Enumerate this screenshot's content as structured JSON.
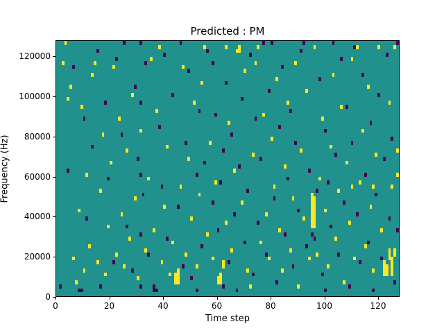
{
  "figure": {
    "title": "Predicted : PM",
    "xlabel": "Time step",
    "ylabel": "Frequency (Hz)"
  },
  "chart_data": {
    "type": "heatmap",
    "title": "Predicted : PM",
    "xlabel": "Time step",
    "ylabel": "Frequency (Hz)",
    "x_max": 128,
    "y_max": 128000,
    "bins_x": 128,
    "bins_y": 64,
    "bin_height_hz": 2000,
    "x_ticks": [
      0,
      20,
      40,
      60,
      80,
      100,
      120
    ],
    "y_ticks": [
      0,
      20000,
      40000,
      60000,
      80000,
      100000,
      120000
    ],
    "grid": false,
    "legend": "none",
    "colors": {
      "background": "#20918c",
      "high": "#fde725",
      "low": "#440154"
    },
    "cells_note": "each cell = [colorKey(y=yellow/high, p=purple/low), timeStep(0-127), freqBin(0-63, bin=2000Hz), optional heightInBins]",
    "cells": [
      [
        "y",
        2,
        58
      ],
      [
        "y",
        3,
        63
      ],
      [
        "y",
        4,
        49
      ],
      [
        "y",
        5,
        52
      ],
      [
        "y",
        6,
        9
      ],
      [
        "y",
        7,
        3
      ],
      [
        "y",
        8,
        21
      ],
      [
        "y",
        9,
        47
      ],
      [
        "y",
        10,
        6
      ],
      [
        "y",
        11,
        30
      ],
      [
        "y",
        12,
        12
      ],
      [
        "y",
        13,
        55
      ],
      [
        "y",
        14,
        58
      ],
      [
        "y",
        15,
        8
      ],
      [
        "y",
        16,
        26
      ],
      [
        "y",
        17,
        40
      ],
      [
        "y",
        18,
        5
      ],
      [
        "y",
        19,
        17
      ],
      [
        "y",
        20,
        33
      ],
      [
        "y",
        21,
        57
      ],
      [
        "y",
        22,
        10
      ],
      [
        "y",
        23,
        44
      ],
      [
        "y",
        24,
        20
      ],
      [
        "y",
        25,
        7
      ],
      [
        "y",
        26,
        36
      ],
      [
        "y",
        27,
        14
      ],
      [
        "y",
        28,
        50
      ],
      [
        "y",
        29,
        24
      ],
      [
        "y",
        30,
        4
      ],
      [
        "y",
        31,
        41
      ],
      [
        "y",
        33,
        11
      ],
      [
        "y",
        34,
        29
      ],
      [
        "y",
        35,
        59
      ],
      [
        "y",
        36,
        16
      ],
      [
        "y",
        37,
        46
      ],
      [
        "y",
        38,
        62
      ],
      [
        "y",
        39,
        8
      ],
      [
        "y",
        40,
        22
      ],
      [
        "y",
        41,
        37
      ],
      [
        "y",
        42,
        5
      ],
      [
        "y",
        43,
        13
      ],
      [
        "y",
        44,
        3,
        3
      ],
      [
        "y",
        45,
        3,
        4
      ],
      [
        "y",
        46,
        27
      ],
      [
        "y",
        47,
        57
      ],
      [
        "y",
        48,
        10
      ],
      [
        "y",
        49,
        34
      ],
      [
        "y",
        50,
        19
      ],
      [
        "y",
        51,
        48
      ],
      [
        "y",
        52,
        7
      ],
      [
        "y",
        53,
        25
      ],
      [
        "y",
        54,
        53
      ],
      [
        "y",
        55,
        62
      ],
      [
        "y",
        56,
        15
      ],
      [
        "y",
        57,
        38
      ],
      [
        "y",
        58,
        9
      ],
      [
        "y",
        59,
        28
      ],
      [
        "y",
        60,
        3,
        2
      ],
      [
        "y",
        61,
        3,
        3
      ],
      [
        "y",
        62,
        7,
        2
      ],
      [
        "y",
        63,
        18
      ],
      [
        "y",
        63,
        62
      ],
      [
        "y",
        64,
        43
      ],
      [
        "y",
        65,
        11
      ],
      [
        "y",
        66,
        31
      ],
      [
        "y",
        67,
        61
      ],
      [
        "y",
        68,
        61,
        2
      ],
      [
        "y",
        69,
        23
      ],
      [
        "y",
        70,
        56
      ],
      [
        "y",
        71,
        6
      ],
      [
        "y",
        72,
        2
      ],
      [
        "y",
        73,
        35
      ],
      [
        "y",
        74,
        58
      ],
      [
        "y",
        75,
        62
      ],
      [
        "y",
        76,
        13
      ],
      [
        "y",
        77,
        45
      ],
      [
        "y",
        78,
        20
      ],
      [
        "y",
        79,
        9
      ],
      [
        "y",
        80,
        39
      ],
      [
        "y",
        81,
        27
      ],
      [
        "y",
        82,
        54
      ],
      [
        "y",
        83,
        16
      ],
      [
        "y",
        84,
        6
      ],
      [
        "y",
        85,
        32
      ],
      [
        "y",
        86,
        48
      ],
      [
        "y",
        87,
        11
      ],
      [
        "y",
        88,
        24
      ],
      [
        "y",
        89,
        58
      ],
      [
        "y",
        90,
        2
      ],
      [
        "y",
        91,
        36
      ],
      [
        "y",
        92,
        19
      ],
      [
        "y",
        93,
        51
      ],
      [
        "y",
        94,
        9
      ],
      [
        "y",
        95,
        17,
        9
      ],
      [
        "y",
        96,
        17,
        8
      ],
      [
        "y",
        96,
        62
      ],
      [
        "y",
        97,
        10
      ],
      [
        "y",
        98,
        29
      ],
      [
        "y",
        99,
        44
      ],
      [
        "y",
        100,
        21
      ],
      [
        "y",
        101,
        7
      ],
      [
        "y",
        102,
        37
      ],
      [
        "y",
        103,
        55
      ],
      [
        "y",
        104,
        14
      ],
      [
        "y",
        105,
        26
      ],
      [
        "y",
        106,
        47
      ],
      [
        "y",
        107,
        3
      ],
      [
        "y",
        108,
        33
      ],
      [
        "y",
        109,
        18
      ],
      [
        "y",
        110,
        59
      ],
      [
        "y",
        110,
        27
      ],
      [
        "y",
        111,
        9
      ],
      [
        "y",
        112,
        62
      ],
      [
        "y",
        113,
        28
      ],
      [
        "y",
        114,
        41
      ],
      [
        "y",
        115,
        12
      ],
      [
        "y",
        116,
        52
      ],
      [
        "y",
        117,
        22
      ],
      [
        "y",
        118,
        6
      ],
      [
        "y",
        118,
        27
      ],
      [
        "y",
        119,
        35
      ],
      [
        "y",
        120,
        62
      ],
      [
        "y",
        121,
        16
      ],
      [
        "y",
        122,
        5,
        4
      ],
      [
        "y",
        123,
        5,
        3
      ],
      [
        "y",
        124,
        9,
        3
      ],
      [
        "y",
        124,
        48
      ],
      [
        "y",
        125,
        5,
        5
      ],
      [
        "y",
        125,
        27
      ],
      [
        "y",
        126,
        10,
        2
      ],
      [
        "y",
        126,
        62
      ],
      [
        "y",
        127,
        30
      ],
      [
        "y",
        127,
        36
      ],
      [
        "p",
        1,
        2
      ],
      [
        "p",
        4,
        31
      ],
      [
        "p",
        6,
        57
      ],
      [
        "p",
        8,
        1
      ],
      [
        "p",
        9,
        1
      ],
      [
        "p",
        10,
        44
      ],
      [
        "p",
        11,
        19
      ],
      [
        "p",
        13,
        37
      ],
      [
        "p",
        15,
        61
      ],
      [
        "p",
        16,
        2
      ],
      [
        "p",
        18,
        48
      ],
      [
        "p",
        19,
        29
      ],
      [
        "p",
        21,
        8
      ],
      [
        "p",
        22,
        59
      ],
      [
        "p",
        24,
        40
      ],
      [
        "p",
        25,
        63
      ],
      [
        "p",
        26,
        17
      ],
      [
        "p",
        28,
        6
      ],
      [
        "p",
        29,
        52
      ],
      [
        "p",
        30,
        34
      ],
      [
        "p",
        31,
        63
      ],
      [
        "p",
        31,
        48
      ],
      [
        "p",
        31,
        30
      ],
      [
        "p",
        31,
        15
      ],
      [
        "p",
        31,
        2
      ],
      [
        "p",
        32,
        25
      ],
      [
        "p",
        33,
        58
      ],
      [
        "p",
        34,
        10
      ],
      [
        "p",
        36,
        1,
        2
      ],
      [
        "p",
        37,
        1
      ],
      [
        "p",
        38,
        42
      ],
      [
        "p",
        39,
        27
      ],
      [
        "p",
        40,
        60
      ],
      [
        "p",
        41,
        14
      ],
      [
        "p",
        43,
        50
      ],
      [
        "p",
        45,
        22
      ],
      [
        "p",
        46,
        63
      ],
      [
        "p",
        47,
        7
      ],
      [
        "p",
        48,
        38
      ],
      [
        "p",
        49,
        56
      ],
      [
        "p",
        50,
        4
      ],
      [
        "p",
        52,
        1
      ],
      [
        "p",
        52,
        30
      ],
      [
        "p",
        53,
        46
      ],
      [
        "p",
        54,
        12
      ],
      [
        "p",
        55,
        33
      ],
      [
        "p",
        56,
        61
      ],
      [
        "p",
        58,
        23
      ],
      [
        "p",
        58,
        58
      ],
      [
        "p",
        59,
        45
      ],
      [
        "p",
        60,
        16
      ],
      [
        "p",
        61,
        28
      ],
      [
        "p",
        62,
        2
      ],
      [
        "p",
        62,
        36
      ],
      [
        "p",
        63,
        53
      ],
      [
        "p",
        64,
        8
      ],
      [
        "p",
        65,
        40
      ],
      [
        "p",
        66,
        20
      ],
      [
        "p",
        67,
        1
      ],
      [
        "p",
        68,
        32
      ],
      [
        "p",
        69,
        49
      ],
      [
        "p",
        70,
        13
      ],
      [
        "p",
        71,
        26
      ],
      [
        "p",
        72,
        60
      ],
      [
        "p",
        73,
        5
      ],
      [
        "p",
        74,
        44
      ],
      [
        "p",
        75,
        18
      ],
      [
        "p",
        76,
        34
      ],
      [
        "p",
        77,
        63
      ],
      [
        "p",
        78,
        10
      ],
      [
        "p",
        79,
        51
      ],
      [
        "p",
        80,
        63
      ],
      [
        "p",
        81,
        24
      ],
      [
        "p",
        82,
        3
      ],
      [
        "p",
        83,
        42
      ],
      [
        "p",
        84,
        57
      ],
      [
        "p",
        85,
        15
      ],
      [
        "p",
        86,
        29
      ],
      [
        "p",
        87,
        46
      ],
      [
        "p",
        88,
        7
      ],
      [
        "p",
        89,
        38
      ],
      [
        "p",
        90,
        21
      ],
      [
        "p",
        91,
        61
      ],
      [
        "p",
        92,
        63
      ],
      [
        "p",
        93,
        12
      ],
      [
        "p",
        94,
        31
      ],
      [
        "p",
        95,
        15
      ],
      [
        "p",
        96,
        14
      ],
      [
        "p",
        97,
        26
      ],
      [
        "p",
        98,
        54
      ],
      [
        "p",
        99,
        5
      ],
      [
        "p",
        100,
        1
      ],
      [
        "p",
        100,
        41
      ],
      [
        "p",
        101,
        28
      ],
      [
        "p",
        102,
        17
      ],
      [
        "p",
        103,
        63
      ],
      [
        "p",
        104,
        35
      ],
      [
        "p",
        105,
        10
      ],
      [
        "p",
        106,
        59
      ],
      [
        "p",
        107,
        23
      ],
      [
        "p",
        108,
        47
      ],
      [
        "p",
        109,
        2
      ],
      [
        "p",
        110,
        38
      ],
      [
        "p",
        111,
        62
      ],
      [
        "p",
        112,
        20
      ],
      [
        "p",
        113,
        8
      ],
      [
        "p",
        114,
        55
      ],
      [
        "p",
        115,
        30
      ],
      [
        "p",
        116,
        13
      ],
      [
        "p",
        117,
        43
      ],
      [
        "p",
        118,
        1
      ],
      [
        "p",
        119,
        25
      ],
      [
        "p",
        120,
        50
      ],
      [
        "p",
        121,
        9
      ],
      [
        "p",
        122,
        34
      ],
      [
        "p",
        123,
        60
      ],
      [
        "p",
        124,
        19
      ],
      [
        "p",
        125,
        39
      ],
      [
        "p",
        126,
        3
      ],
      [
        "p",
        127,
        63
      ],
      [
        "p",
        127,
        16
      ]
    ]
  }
}
